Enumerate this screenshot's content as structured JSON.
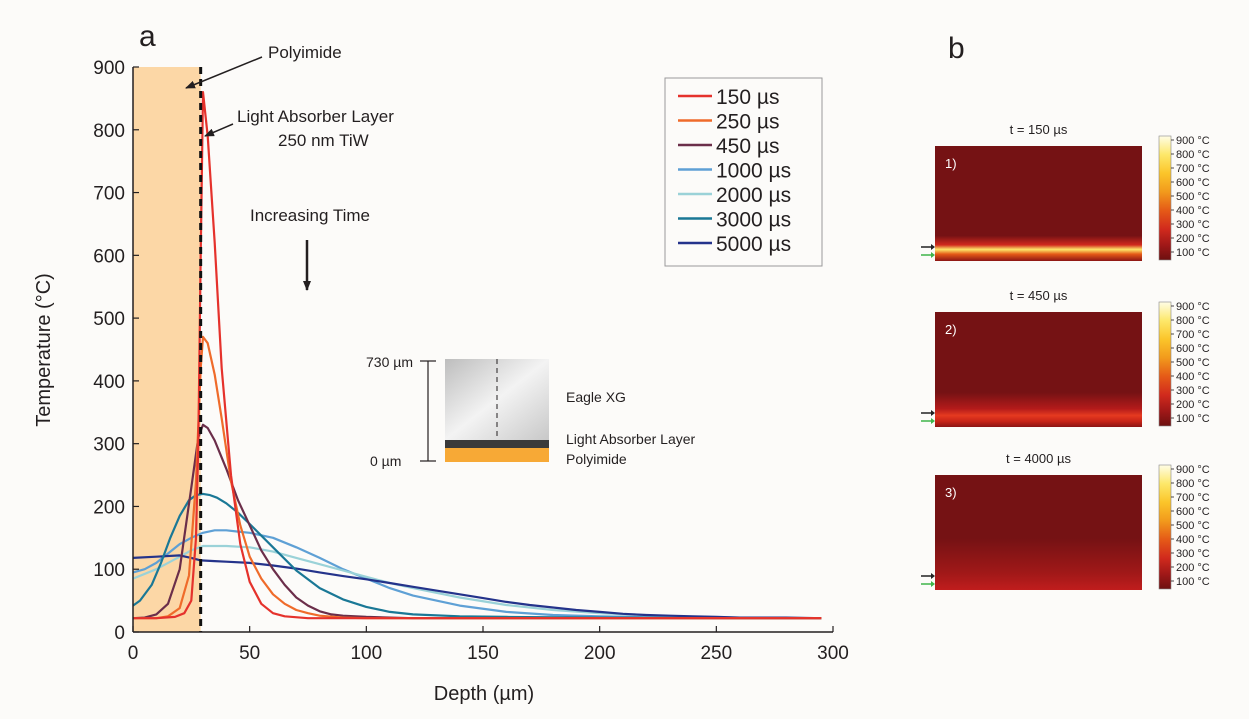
{
  "panel_a": {
    "letter": "a",
    "annotations": {
      "polyimide": "Polyimide",
      "absorber_line1": "Light Absorber Layer",
      "absorber_line2": "250 nm TiW",
      "increasing_time": "Increasing Time"
    },
    "inset": {
      "top_label": "730 µm",
      "bottom_label": "0 µm",
      "eagle": "Eagle XG",
      "absorber": "Light Absorber Layer",
      "polyimide": "Polyimide",
      "glass_color": "#d3d3d3",
      "absorber_color": "#3a3a3a",
      "polyimide_color": "#f7a936"
    }
  },
  "chart_data": [
    {
      "type": "line",
      "xlabel": "Depth (µm)",
      "ylabel": "Temperature (°C)",
      "xlim": [
        0,
        300
      ],
      "ylim": [
        0,
        900
      ],
      "xticks": [
        0,
        50,
        100,
        150,
        200,
        250,
        300
      ],
      "yticks": [
        0,
        100,
        200,
        300,
        400,
        500,
        600,
        700,
        800,
        900
      ],
      "grid": false,
      "legend_position": "top-right",
      "polyimide_region": {
        "from": 0,
        "to": 29,
        "color": "#fcd7a6"
      },
      "interface_depth": 29,
      "series": [
        {
          "name": "150 µs",
          "color": "#e5322c",
          "x": [
            0,
            10,
            18,
            22,
            25,
            27,
            28,
            29,
            30,
            32,
            35,
            38,
            42,
            46,
            50,
            55,
            60,
            65,
            75,
            100,
            150,
            200,
            250,
            295
          ],
          "y": [
            22,
            22,
            24,
            30,
            50,
            150,
            300,
            600,
            860,
            790,
            620,
            420,
            250,
            140,
            80,
            45,
            30,
            25,
            22,
            22,
            22,
            22,
            22,
            22
          ]
        },
        {
          "name": "250 µs",
          "color": "#ef6b2a",
          "x": [
            0,
            10,
            15,
            20,
            24,
            27,
            29,
            30,
            32,
            35,
            38,
            42,
            46,
            50,
            55,
            60,
            65,
            70,
            75,
            80,
            90,
            100,
            150,
            200,
            250,
            295
          ],
          "y": [
            22,
            22,
            25,
            38,
            90,
            240,
            420,
            470,
            460,
            410,
            340,
            240,
            170,
            120,
            85,
            60,
            45,
            35,
            30,
            26,
            23,
            22,
            22,
            22,
            22,
            22
          ]
        },
        {
          "name": "450 µs",
          "color": "#6b2e4a",
          "x": [
            0,
            5,
            10,
            15,
            20,
            25,
            28,
            30,
            32,
            35,
            40,
            45,
            50,
            55,
            60,
            65,
            70,
            75,
            80,
            85,
            90,
            100,
            120,
            150,
            200,
            250,
            295
          ],
          "y": [
            22,
            23,
            28,
            45,
            100,
            230,
            310,
            330,
            325,
            305,
            260,
            210,
            170,
            130,
            100,
            75,
            55,
            42,
            33,
            28,
            26,
            24,
            22,
            22,
            22,
            22,
            22
          ]
        },
        {
          "name": "1000 µs",
          "color": "#5ea0d5",
          "x": [
            0,
            5,
            10,
            15,
            20,
            25,
            30,
            35,
            40,
            45,
            50,
            60,
            70,
            80,
            90,
            100,
            110,
            120,
            140,
            160,
            180,
            200,
            230,
            260,
            295
          ],
          "y": [
            95,
            100,
            110,
            125,
            140,
            150,
            158,
            162,
            162,
            160,
            158,
            150,
            135,
            118,
            100,
            85,
            70,
            58,
            42,
            32,
            27,
            25,
            23,
            22,
            22
          ]
        },
        {
          "name": "2000 µs",
          "color": "#9ad2d8",
          "x": [
            0,
            10,
            20,
            25,
            30,
            40,
            50,
            60,
            70,
            80,
            90,
            100,
            110,
            120,
            140,
            160,
            180,
            200,
            230,
            260,
            295
          ],
          "y": [
            85,
            100,
            120,
            130,
            137,
            137,
            135,
            128,
            118,
            108,
            98,
            88,
            78,
            70,
            55,
            43,
            35,
            30,
            25,
            23,
            22
          ]
        },
        {
          "name": "3000 µs",
          "color": "#1a7896",
          "x": [
            0,
            3,
            8,
            12,
            16,
            20,
            24,
            27,
            30,
            33,
            36,
            40,
            45,
            50,
            60,
            70,
            80,
            90,
            100,
            110,
            120,
            140,
            160,
            200,
            250,
            295
          ],
          "y": [
            42,
            50,
            75,
            110,
            150,
            185,
            210,
            218,
            220,
            218,
            214,
            205,
            190,
            172,
            135,
            98,
            70,
            52,
            40,
            32,
            28,
            25,
            24,
            23,
            22,
            22
          ]
        },
        {
          "name": "5000 µs",
          "color": "#24338b",
          "x": [
            0,
            10,
            20,
            25,
            29,
            35,
            40,
            50,
            60,
            70,
            80,
            90,
            100,
            110,
            120,
            130,
            140,
            150,
            160,
            170,
            180,
            190,
            200,
            210,
            220,
            230,
            240,
            250,
            260,
            270,
            280,
            295
          ],
          "y": [
            118,
            120,
            122,
            118,
            114,
            113,
            112,
            110,
            106,
            101,
            95,
            89,
            84,
            78,
            72,
            66,
            60,
            54,
            48,
            43,
            39,
            35,
            32,
            29,
            27,
            26,
            25,
            24,
            23,
            23,
            23,
            22
          ]
        }
      ]
    },
    {
      "type": "heatmap",
      "title": "t = 150 µs",
      "index_label": "1)",
      "colorbar_ticks": [
        "900 °C",
        "800 °C",
        "700 °C",
        "600 °C",
        "500 °C",
        "400 °C",
        "300 °C",
        "200 °C",
        "100 °C"
      ],
      "colorscale": [
        "#fffde6",
        "#fde86a",
        "#fbc52a",
        "#f29a1c",
        "#e55a17",
        "#d12a1d",
        "#b31a1a",
        "#8c1515",
        "#6d1010"
      ],
      "background_color": "#751214",
      "hot_band_depth_fraction": 0.9
    },
    {
      "type": "heatmap",
      "title": "t = 450 µs",
      "index_label": "2)",
      "colorbar_ticks": [
        "900 °C",
        "800 °C",
        "700 °C",
        "600 °C",
        "500 °C",
        "400 °C",
        "300 °C",
        "200 °C",
        "100 °C"
      ],
      "colorscale": [
        "#fffde6",
        "#fde86a",
        "#fbc52a",
        "#f29a1c",
        "#e55a17",
        "#d12a1d",
        "#b31a1a",
        "#8c1515",
        "#6d1010"
      ],
      "background_color": "#751214",
      "hot_band_depth_fraction": 0.9
    },
    {
      "type": "heatmap",
      "title": "t = 4000 µs",
      "index_label": "3)",
      "colorbar_ticks": [
        "900 °C",
        "800 °C",
        "700 °C",
        "600 °C",
        "500 °C",
        "400 °C",
        "300 °C",
        "200 °C",
        "100 °C"
      ],
      "colorscale": [
        "#fffde6",
        "#fde86a",
        "#fbc52a",
        "#f29a1c",
        "#e55a17",
        "#d12a1d",
        "#b31a1a",
        "#8c1515",
        "#6d1010"
      ],
      "background_color": "#751214",
      "hot_band_depth_fraction": 0.9
    }
  ],
  "panel_b": {
    "letter": "b",
    "arrow_colors": [
      "#222222",
      "#3fb54a"
    ]
  }
}
